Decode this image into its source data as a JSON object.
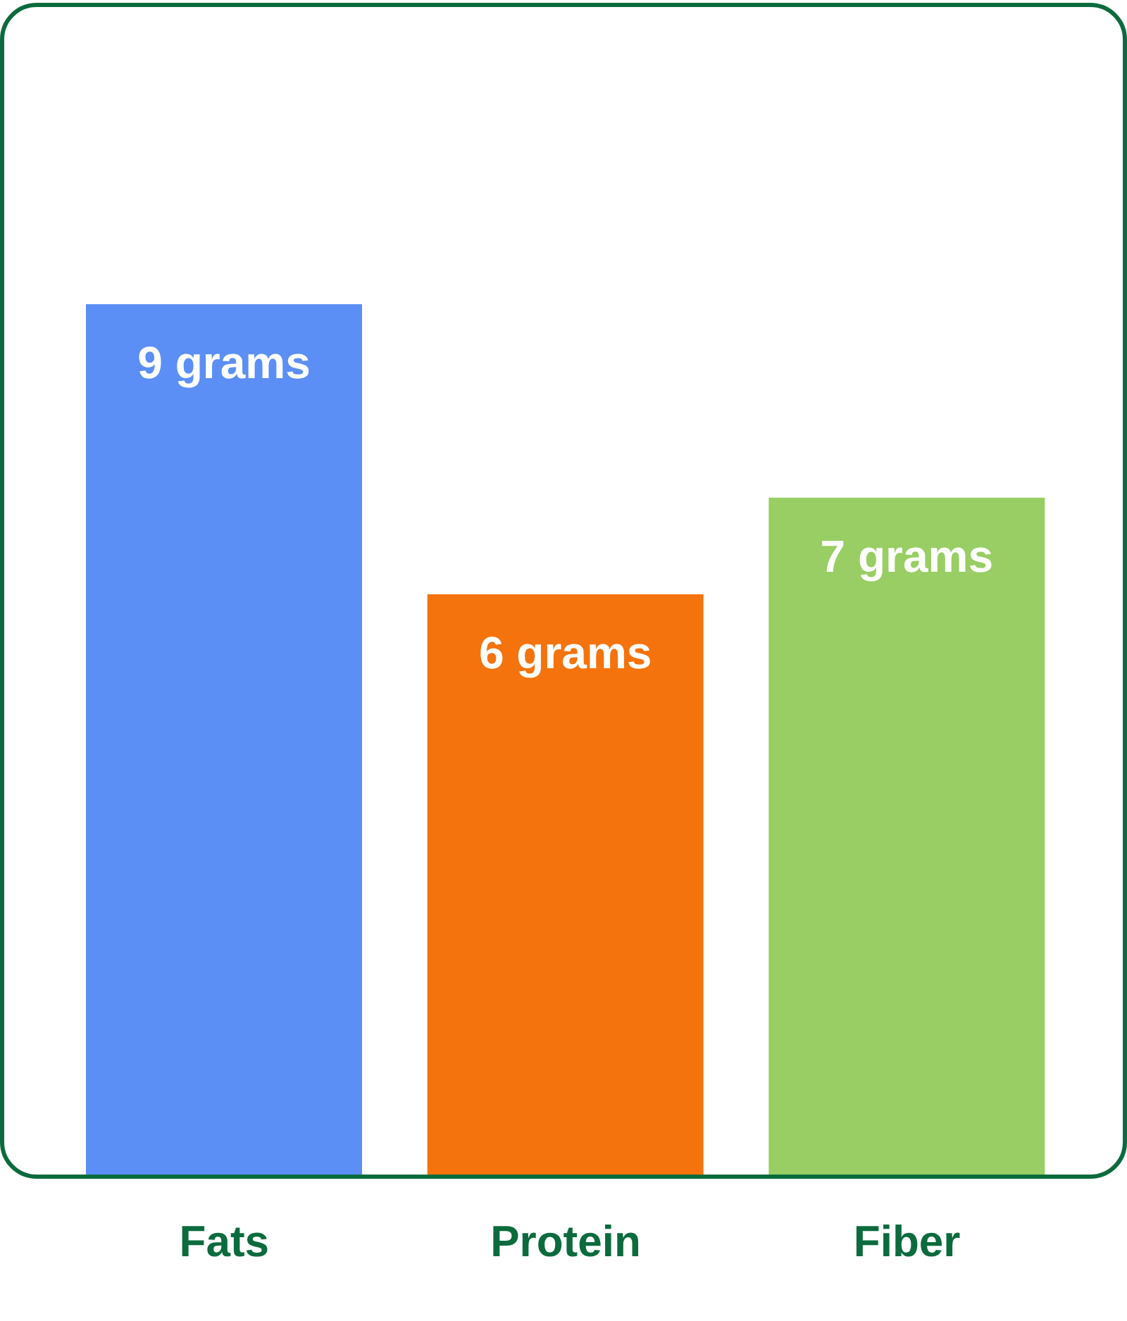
{
  "chart_data": {
    "type": "bar",
    "categories": [
      "Fats",
      "Protein",
      "Fiber"
    ],
    "values": [
      9,
      6,
      7
    ],
    "colors": [
      "#5b8ff5",
      "#f5730c",
      "#98ce63"
    ],
    "value_labels": [
      "9 grams",
      "6 grams",
      "7 grams"
    ]
  }
}
